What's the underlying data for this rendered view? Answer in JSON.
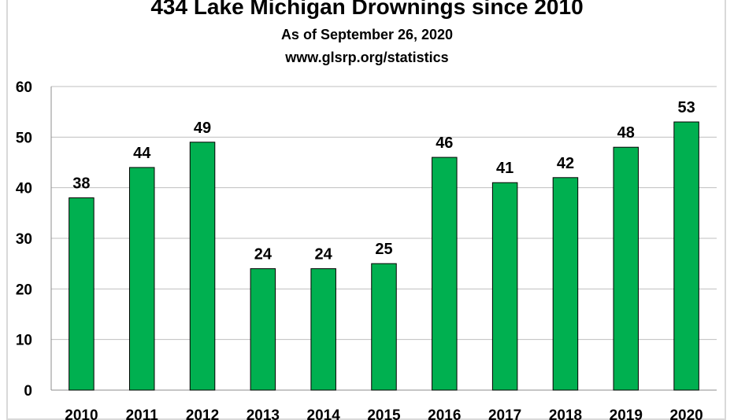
{
  "chart_data": {
    "type": "bar",
    "title": "434 Lake Michigan Drownings since 2010",
    "subtitle": "As of September 26, 2020",
    "source": "www.glsrp.org/statistics",
    "categories": [
      "2010",
      "2011",
      "2012",
      "2013",
      "2014",
      "2015",
      "2016",
      "2017",
      "2018",
      "2019",
      "2020"
    ],
    "values": [
      38,
      44,
      49,
      24,
      24,
      25,
      46,
      41,
      42,
      48,
      53
    ],
    "ylim": [
      0,
      60
    ],
    "yticks": [
      0,
      10,
      20,
      30,
      40,
      50,
      60
    ],
    "grid": true,
    "legend": "none",
    "colors": {
      "bar": "#00b050",
      "bar_edge": "#000000",
      "grid": "#bfbfbf"
    }
  }
}
